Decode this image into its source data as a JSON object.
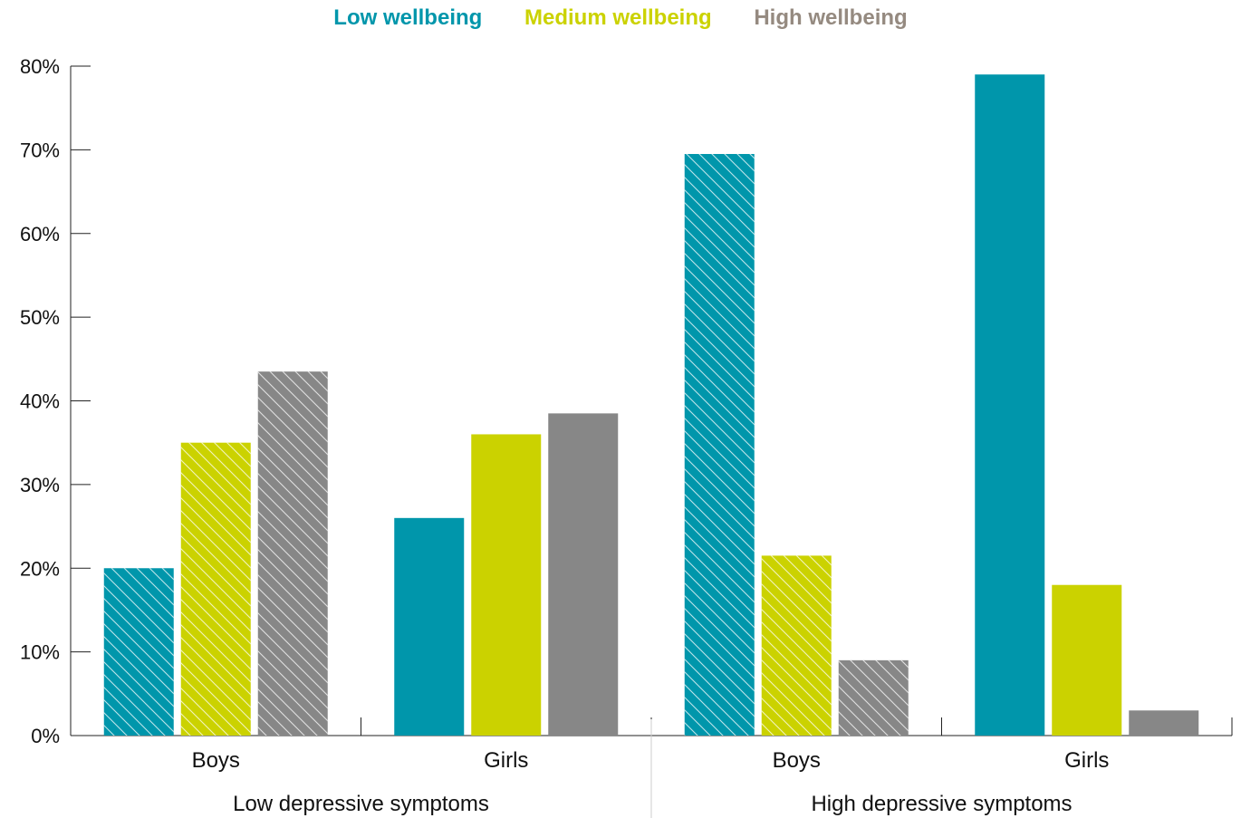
{
  "chart_data": {
    "type": "bar",
    "ylim": [
      0,
      80
    ],
    "yticks": [
      "0%",
      "10%",
      "20%",
      "30%",
      "40%",
      "50%",
      "60%",
      "70%",
      "80%"
    ],
    "legend": {
      "position": "top-center"
    },
    "series": [
      {
        "name": "Low wellbeing",
        "color": "#0096AB"
      },
      {
        "name": "Medium wellbeing",
        "color": "#CBD200"
      },
      {
        "name": "High wellbeing",
        "color": "#878787"
      }
    ],
    "legend_label_color_high": "#958A80",
    "groups": [
      {
        "label": "Low depressive symptoms",
        "subgroups": [
          {
            "label": "Boys",
            "hatched": true,
            "values": [
              20,
              35,
              43.5
            ]
          },
          {
            "label": "Girls",
            "hatched": false,
            "values": [
              26,
              36,
              38.5
            ]
          }
        ]
      },
      {
        "label": "High depressive symptoms",
        "subgroups": [
          {
            "label": "Boys",
            "hatched": true,
            "values": [
              69.5,
              21.5,
              9
            ]
          },
          {
            "label": "Girls",
            "hatched": false,
            "values": [
              79,
              18,
              3
            ]
          }
        ]
      }
    ]
  }
}
